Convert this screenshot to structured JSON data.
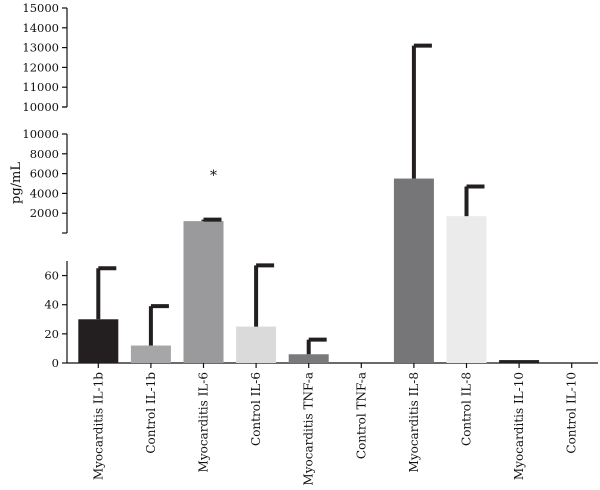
{
  "chart_data": {
    "type": "bar",
    "ylabel": "pg/mL",
    "categories": [
      "Myocarditis IL-1b",
      "Control IL-1b",
      "Myocarditis IL-6",
      "Control IL-6",
      "Myocarditis TNF-a",
      "Control TNF-a",
      "Myocarditis IL-8",
      "Control IL-8",
      "Myocarditis IL-10",
      "Control IL-10"
    ],
    "values": [
      30,
      12,
      1200,
      25,
      6,
      0,
      5500,
      1700,
      2,
      0
    ],
    "error_upper": [
      65,
      39,
      1350,
      67,
      16,
      0,
      13100,
      4700,
      2,
      0
    ],
    "bar_colors": [
      "#231f20",
      "#a6a6a8",
      "#9a9a9c",
      "#dadadb",
      "#7a7a7c",
      "#cccccc",
      "#767678",
      "#ebebec",
      "#231f20",
      "#cccccc"
    ],
    "significance": [
      {
        "category": "Myocarditis IL-6",
        "label": "*"
      }
    ],
    "y_axis_segments": [
      {
        "ylim": [
          0,
          70
        ],
        "ticks": [
          "0",
          "20",
          "40",
          "60"
        ]
      },
      {
        "ylim": [
          0,
          10000
        ],
        "ticks": [
          "2000",
          "4000",
          "6000",
          "8000",
          "10000"
        ]
      },
      {
        "ylim": [
          10000,
          15000
        ],
        "ticks": [
          "10000",
          "11000",
          "12000",
          "13000",
          "14000",
          "15000"
        ]
      }
    ]
  }
}
